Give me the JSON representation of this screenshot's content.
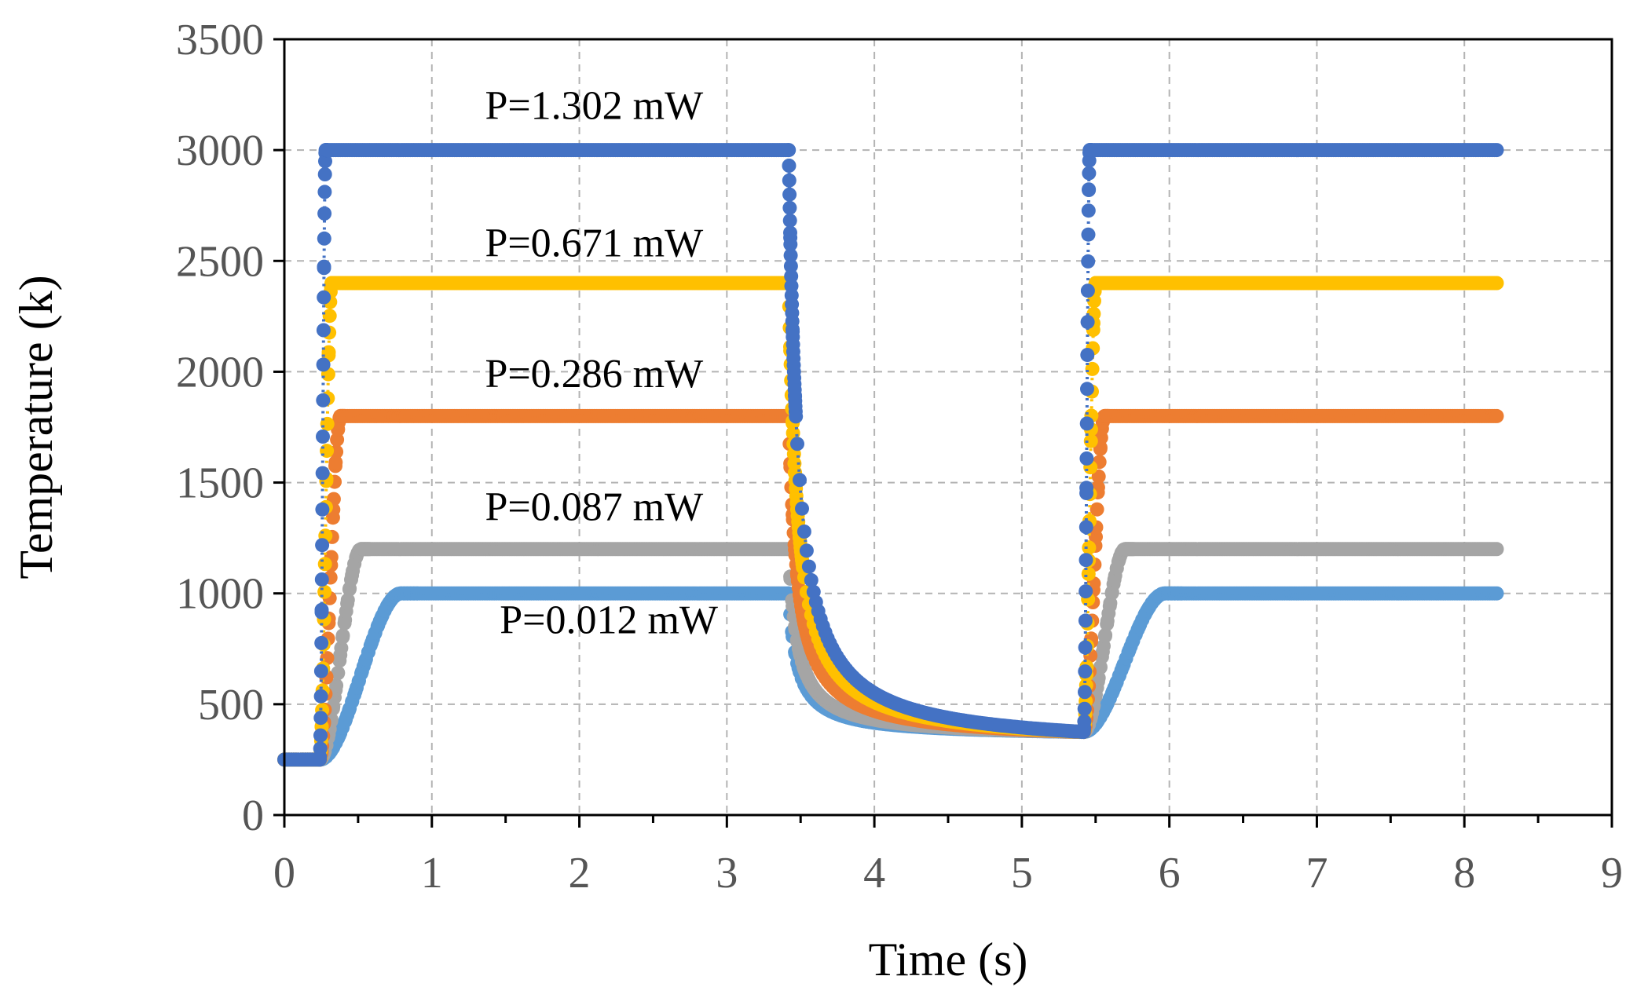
{
  "chart_data": {
    "type": "scatter",
    "title": "",
    "xlabel": "Time (s)",
    "ylabel": "Temperature (k)",
    "xlim": [
      0,
      9
    ],
    "ylim": [
      0,
      3500
    ],
    "x_ticks": [
      0,
      1,
      2,
      3,
      4,
      5,
      6,
      7,
      8,
      9
    ],
    "y_ticks": [
      0,
      500,
      1000,
      1500,
      2000,
      2500,
      3000,
      3500
    ],
    "grid": true,
    "legend": "none",
    "pulse": {
      "t_on1": 0.24,
      "t_off": 3.42,
      "t_on2": 5.42,
      "t_end": 8.22,
      "base_temp": 250,
      "cool_end_temp": 375
    },
    "series": [
      {
        "name": "P=1.302 mW",
        "power_mW": 1.302,
        "peak_temp": 3000,
        "rise_time_s": 0.04,
        "color": "#4472C4",
        "dotted_connector": true
      },
      {
        "name": "P=0.671 mW",
        "power_mW": 0.671,
        "peak_temp": 2400,
        "rise_time_s": 0.08,
        "color": "#FFC000",
        "dotted_connector": true
      },
      {
        "name": "P=0.286 mW",
        "power_mW": 0.286,
        "peak_temp": 1800,
        "rise_time_s": 0.14,
        "color": "#ED7D31",
        "dotted_connector": false
      },
      {
        "name": "P=0.087 mW",
        "power_mW": 0.087,
        "peak_temp": 1200,
        "rise_time_s": 0.28,
        "color": "#A5A5A5",
        "dotted_connector": false
      },
      {
        "name": "P=0.012 mW",
        "power_mW": 0.012,
        "peak_temp": 1000,
        "rise_time_s": 0.55,
        "color": "#5B9BD5",
        "dotted_connector": false
      }
    ],
    "annotations": [
      {
        "text": "P=1.302 mW",
        "x": 2.1,
        "y": 3140
      },
      {
        "text": "P=0.671 mW",
        "x": 2.1,
        "y": 2520
      },
      {
        "text": "P=0.286 mW",
        "x": 2.1,
        "y": 1930
      },
      {
        "text": "P=0.087 mW",
        "x": 2.1,
        "y": 1330
      },
      {
        "text": "P=0.012 mW",
        "x": 2.2,
        "y": 820
      }
    ]
  }
}
